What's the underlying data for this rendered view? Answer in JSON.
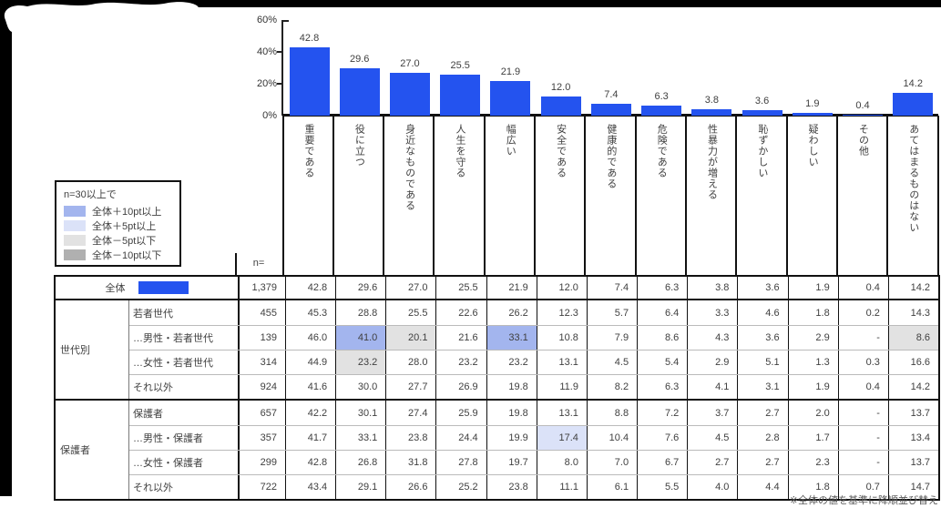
{
  "page": {
    "footer_note": "※全体の値を基準に降順並び替え"
  },
  "legend": {
    "title": "n=30以上で",
    "items": [
      {
        "key": "p10",
        "label": "全体＋10pt以上",
        "color": "#a3b5ee"
      },
      {
        "key": "p5",
        "label": "全体＋5pt以上",
        "color": "#dbe2f8"
      },
      {
        "key": "m5",
        "label": "全体－5pt以下",
        "color": "#e2e2e2"
      },
      {
        "key": "m10",
        "label": "全体－10pt以下",
        "color": "#b0b0b0"
      }
    ]
  },
  "highlight_colors": {
    "p10": "#a3b5ee",
    "p5": "#dbe2f8",
    "m5": "#e2e2e2",
    "m10": "#b0b0b0"
  },
  "chart_data": {
    "type": "bar",
    "title": "",
    "categories": [
      "重要である",
      "役に立つ",
      "身近なものである",
      "人生を守る",
      "幅広い",
      "安全である",
      "健康的である",
      "危険である",
      "性暴力が増える",
      "恥ずかしい",
      "疑わしい",
      "その他",
      "あてはまるものはない"
    ],
    "values": [
      42.8,
      29.6,
      27.0,
      25.5,
      21.9,
      12.0,
      7.4,
      6.3,
      3.8,
      3.6,
      1.9,
      0.4,
      14.2
    ],
    "value_labels": [
      "42.8",
      "29.6",
      "27.0",
      "25.5",
      "21.9",
      "12.0",
      "7.4",
      "6.3",
      "3.8",
      "3.6",
      "1.9",
      "0.4",
      "14.2"
    ],
    "xlabel": "",
    "ylabel": "",
    "ylim": [
      0,
      60
    ],
    "yticks": [
      {
        "label": "60%",
        "value": 60
      },
      {
        "label": "40%",
        "value": 40
      },
      {
        "label": "20%",
        "value": 20
      },
      {
        "label": "0%",
        "value": 0
      }
    ],
    "bar_color": "#2453ef",
    "grid": false,
    "legend_position": "none"
  },
  "table": {
    "n_header": "n=",
    "total_row": {
      "label": "全体",
      "n": "1,379",
      "values": [
        "42.8",
        "29.6",
        "27.0",
        "25.5",
        "21.9",
        "12.0",
        "7.4",
        "6.3",
        "3.8",
        "3.6",
        "1.9",
        "0.4",
        "14.2"
      ]
    },
    "groups": [
      {
        "name": "世代別",
        "rows": [
          {
            "label": "若者世代",
            "n": "455",
            "values": [
              "45.3",
              "28.8",
              "25.5",
              "22.6",
              "26.2",
              "12.3",
              "5.7",
              "6.4",
              "3.3",
              "4.6",
              "1.8",
              "0.2",
              "14.3"
            ],
            "hl": {}
          },
          {
            "label": "…男性・若者世代",
            "n": "139",
            "values": [
              "46.0",
              "41.0",
              "20.1",
              "21.6",
              "33.1",
              "10.8",
              "7.9",
              "8.6",
              "4.3",
              "3.6",
              "2.9",
              "-",
              "8.6"
            ],
            "hl": {
              "1": "p10",
              "2": "m5",
              "4": "p10",
              "12": "m5"
            }
          },
          {
            "label": "…女性・若者世代",
            "n": "314",
            "values": [
              "44.9",
              "23.2",
              "28.0",
              "23.2",
              "23.2",
              "13.1",
              "4.5",
              "5.4",
              "2.9",
              "5.1",
              "1.3",
              "0.3",
              "16.6"
            ],
            "hl": {
              "1": "m5"
            }
          },
          {
            "label": "それ以外",
            "n": "924",
            "values": [
              "41.6",
              "30.0",
              "27.7",
              "26.9",
              "19.8",
              "11.9",
              "8.2",
              "6.3",
              "4.1",
              "3.1",
              "1.9",
              "0.4",
              "14.2"
            ],
            "hl": {}
          }
        ]
      },
      {
        "name": "保護者",
        "rows": [
          {
            "label": "保護者",
            "n": "657",
            "values": [
              "42.2",
              "30.1",
              "27.4",
              "25.9",
              "19.8",
              "13.1",
              "8.8",
              "7.2",
              "3.7",
              "2.7",
              "2.0",
              "-",
              "13.7"
            ],
            "hl": {}
          },
          {
            "label": "…男性・保護者",
            "n": "357",
            "values": [
              "41.7",
              "33.1",
              "23.8",
              "24.4",
              "19.9",
              "17.4",
              "10.4",
              "7.6",
              "4.5",
              "2.8",
              "1.7",
              "-",
              "13.4"
            ],
            "hl": {
              "5": "p5"
            }
          },
          {
            "label": "…女性・保護者",
            "n": "299",
            "values": [
              "42.8",
              "26.8",
              "31.8",
              "27.8",
              "19.7",
              "8.0",
              "7.0",
              "6.7",
              "2.7",
              "2.7",
              "2.3",
              "-",
              "13.7"
            ],
            "hl": {}
          },
          {
            "label": "それ以外",
            "n": "722",
            "values": [
              "43.4",
              "29.1",
              "26.6",
              "25.2",
              "23.8",
              "11.1",
              "6.1",
              "5.5",
              "4.0",
              "4.4",
              "1.8",
              "0.7",
              "14.7"
            ],
            "hl": {}
          }
        ]
      }
    ]
  }
}
